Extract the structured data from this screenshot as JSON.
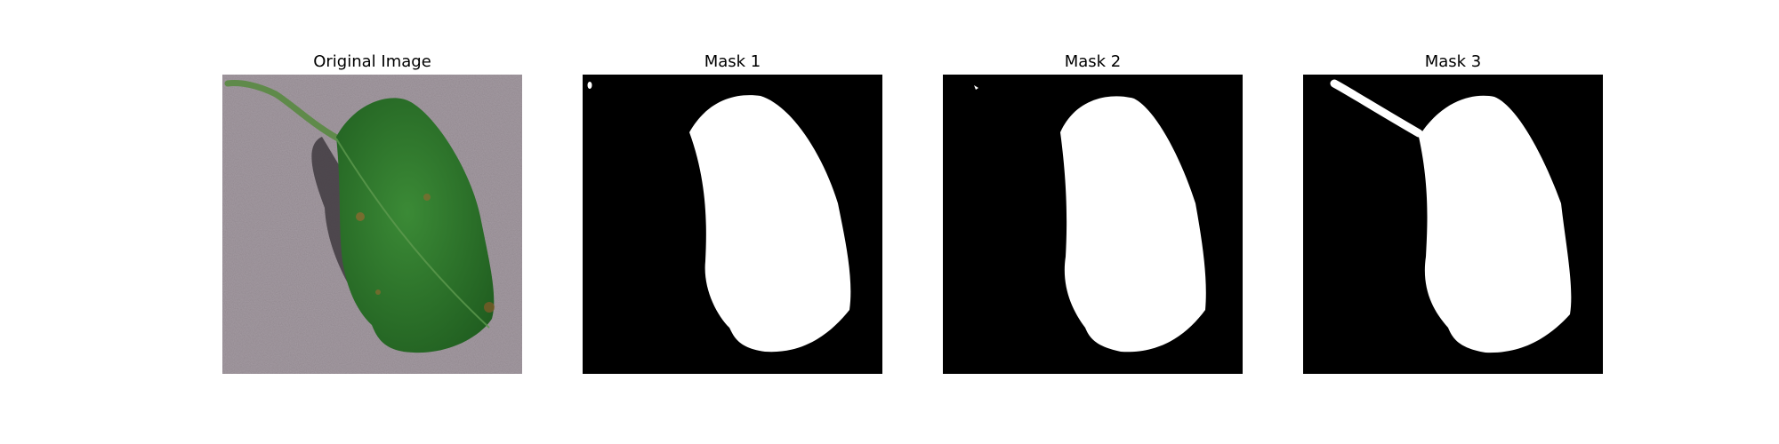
{
  "figure": {
    "panels": [
      {
        "title": "Original Image",
        "kind": "photo",
        "subject": "leaf"
      },
      {
        "title": "Mask 1",
        "kind": "binary-mask",
        "foreground": "#ffffff",
        "background": "#000000"
      },
      {
        "title": "Mask 2",
        "kind": "binary-mask",
        "foreground": "#ffffff",
        "background": "#000000"
      },
      {
        "title": "Mask 3",
        "kind": "binary-mask",
        "foreground": "#ffffff",
        "background": "#000000"
      }
    ]
  },
  "colors": {
    "page_background": "#ffffff",
    "ground": "#a59ca3",
    "leaf": "#2f7a2e",
    "leaf_dark": "#1f5c1f",
    "stem": "#5f8a4a",
    "shadow": "#3f3a3f",
    "spot": "#8a6a2f"
  }
}
